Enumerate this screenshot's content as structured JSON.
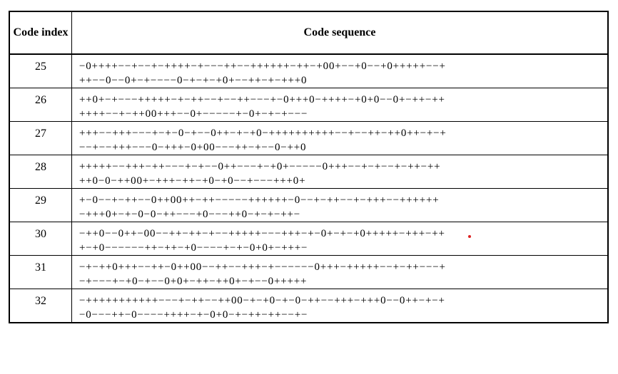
{
  "header": {
    "code_index": "Code index",
    "code_sequence": "Code sequence"
  },
  "rows": [
    {
      "index": "25",
      "line1": "−0++++−−+−−+−++++−+−−−++−−++++++−++−+00+−−+0−−+0+++++−−+",
      "line2": "++−−0−−0+−+−−−−0−+−+−+0+−−++−+−+++0"
    },
    {
      "index": "26",
      "line1": "++0+−+−−−+++++−+−++−−+−−++−−−+−0+++0−++++−+0+0−−0+−++−++",
      "line2": "++++−−+−++00+++−−0+−−−−−+−0+−+−+−−−"
    },
    {
      "index": "27",
      "line1": "+++−−+++−−−+−+−0−+−−0++−+−+0−++++++++++−−+−−++−++0++−+−+",
      "line2": "−−+−−+++−−−0−+++−0+00−−−++−+−−0−++0"
    },
    {
      "index": "28",
      "line1": "+++++−−+++−++−−−+−+−−0++−−−+−+0+−−−−−0+++−−+−+−−+−++−++",
      "line2": "++0−0−++00+−+++−++−+0−+0−−+−−−+++0+"
    },
    {
      "index": "29",
      "line1": "+−0−−+−++−−0++00++−++−−−−−++++++−0−−+−++−−+−+++−−++++++",
      "line2": "−+++0+−+−0−0−++−−−+0−−−++0−+−+−++−"
    },
    {
      "index": "30",
      "line1": "−++0−−0++−00−−++−++−+−−+++++−−−+++−+−0+−+−+0+++++−+++−++",
      "line2": "+−+0−−−−−−++−++−+0−−−−+−+−0+0+−+++−"
    },
    {
      "index": "31",
      "line1": "−+−++0+++−−++−0++00−−++−−+++−+−−−−−−0+++−+++++−−+−++−−−+",
      "line2": "−+−−−+−+0−+−−0+0+−++−++0+−+−−0+++++"
    },
    {
      "index": "32",
      "line1": "−+++++++++++−−−+−++−−++00−+−+0−+−0−++−−+++−+++0−−0++−+−+",
      "line2": "−0−−−++−0−−−−++++−+−0+0−+−++−++−−+−"
    }
  ]
}
